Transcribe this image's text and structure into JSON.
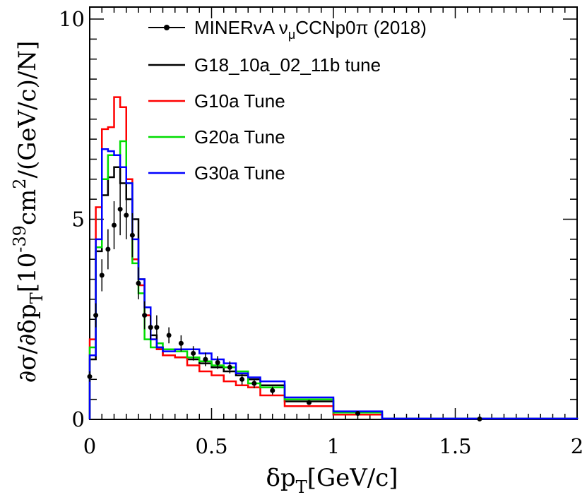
{
  "chart_data": {
    "type": "line",
    "xlabel": {
      "base": "δp",
      "sub": "T",
      "unit": "[GeV/c]"
    },
    "ylabel": {
      "p1": "∂σ/∂δp",
      "sub1": "T",
      "p2": "[10",
      "sup1": "-39",
      "p3": "cm",
      "sup2": "2",
      "p4": "/(GeV/c)/N]"
    },
    "xlim": [
      0,
      2
    ],
    "ylim": [
      0,
      10.3
    ],
    "x_ticks": [
      0,
      0.5,
      1,
      1.5,
      2
    ],
    "x_tick_labels": [
      "0",
      "0.5",
      "1",
      "1.5",
      "2"
    ],
    "y_ticks": [
      0,
      5,
      10
    ],
    "y_tick_labels": [
      "0",
      "5",
      "10"
    ],
    "legend_position": "top-right",
    "bin_edges": [
      0,
      0.025,
      0.05,
      0.075,
      0.1,
      0.125,
      0.15,
      0.175,
      0.2,
      0.225,
      0.25,
      0.275,
      0.3,
      0.35,
      0.4,
      0.45,
      0.5,
      0.55,
      0.6,
      0.65,
      0.7,
      0.8,
      1.0,
      1.2,
      2.0
    ],
    "data_series": {
      "name": "MINERvA ν",
      "name_sub": "μ",
      "name_tail": "CCNp0π (2018)",
      "color": "#000000",
      "points": [
        {
          "x": 0.0,
          "y": 1.07,
          "err": 0.13
        },
        {
          "x": 0.025,
          "y": 2.6,
          "err": 0.3
        },
        {
          "x": 0.05,
          "y": 3.6,
          "err": 0.4
        },
        {
          "x": 0.075,
          "y": 4.25,
          "err": 0.5
        },
        {
          "x": 0.1,
          "y": 4.85,
          "err": 0.6
        },
        {
          "x": 0.125,
          "y": 5.25,
          "err": 0.65
        },
        {
          "x": 0.15,
          "y": 5.1,
          "err": 0.6
        },
        {
          "x": 0.175,
          "y": 4.6,
          "err": 0.55
        },
        {
          "x": 0.2,
          "y": 3.4,
          "err": 0.4
        },
        {
          "x": 0.225,
          "y": 2.6,
          "err": 0.35
        },
        {
          "x": 0.25,
          "y": 2.3,
          "err": 0.3
        },
        {
          "x": 0.275,
          "y": 2.3,
          "err": 0.3
        },
        {
          "x": 0.325,
          "y": 2.1,
          "err": 0.2
        },
        {
          "x": 0.375,
          "y": 1.9,
          "err": 0.2
        },
        {
          "x": 0.425,
          "y": 1.65,
          "err": 0.18
        },
        {
          "x": 0.475,
          "y": 1.5,
          "err": 0.17
        },
        {
          "x": 0.525,
          "y": 1.42,
          "err": 0.16
        },
        {
          "x": 0.575,
          "y": 1.3,
          "err": 0.15
        },
        {
          "x": 0.625,
          "y": 1.0,
          "err": 0.13
        },
        {
          "x": 0.675,
          "y": 0.9,
          "err": 0.12
        },
        {
          "x": 0.75,
          "y": 0.72,
          "err": 0.1
        },
        {
          "x": 0.9,
          "y": 0.42,
          "err": 0.05
        },
        {
          "x": 1.1,
          "y": 0.15,
          "err": 0.03
        },
        {
          "x": 1.6,
          "y": 0.01,
          "err": 0.01
        }
      ]
    },
    "series": [
      {
        "name": "G18_10a_02_11b tune",
        "color": "#000000",
        "values": [
          1.5,
          4.2,
          5.6,
          6.05,
          6.3,
          5.9,
          5.5,
          5.0,
          3.5,
          2.6,
          2.1,
          1.8,
          1.6,
          1.55,
          1.5,
          1.4,
          1.3,
          1.2,
          1.1,
          1.0,
          0.85,
          0.45,
          0.12,
          0.02
        ]
      },
      {
        "name": "G10a Tune",
        "color": "#ff0000",
        "values": [
          2.0,
          5.3,
          7.25,
          7.3,
          8.05,
          7.8,
          6.0,
          4.0,
          3.35,
          2.6,
          2.0,
          1.75,
          1.6,
          1.55,
          1.35,
          1.2,
          1.1,
          0.95,
          0.85,
          0.8,
          0.6,
          0.33,
          0.12,
          0.02
        ]
      },
      {
        "name": "G20a Tune",
        "color": "#00dd00",
        "values": [
          1.8,
          4.3,
          6.0,
          6.6,
          6.6,
          6.95,
          5.9,
          3.9,
          3.15,
          2.0,
          1.8,
          1.9,
          1.75,
          1.7,
          1.55,
          1.45,
          1.35,
          1.3,
          1.2,
          0.9,
          0.8,
          0.5,
          0.17,
          0.02
        ]
      },
      {
        "name": "G30a Tune",
        "color": "#0000ff",
        "values": [
          1.6,
          4.5,
          6.75,
          6.7,
          6.6,
          6.3,
          5.9,
          4.5,
          3.5,
          2.8,
          2.0,
          1.8,
          1.7,
          1.75,
          1.75,
          1.65,
          1.5,
          1.4,
          1.15,
          1.05,
          0.95,
          0.55,
          0.2,
          0.02
        ]
      }
    ]
  }
}
